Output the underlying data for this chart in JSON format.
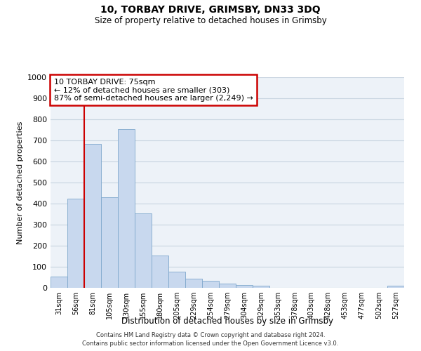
{
  "title": "10, TORBAY DRIVE, GRIMSBY, DN33 3DQ",
  "subtitle": "Size of property relative to detached houses in Grimsby",
  "xlabel": "Distribution of detached houses by size in Grimsby",
  "ylabel": "Number of detached properties",
  "bar_labels": [
    "31sqm",
    "56sqm",
    "81sqm",
    "105sqm",
    "130sqm",
    "155sqm",
    "180sqm",
    "205sqm",
    "229sqm",
    "254sqm",
    "279sqm",
    "304sqm",
    "329sqm",
    "353sqm",
    "378sqm",
    "403sqm",
    "428sqm",
    "453sqm",
    "477sqm",
    "502sqm",
    "527sqm"
  ],
  "bar_values": [
    52,
    425,
    685,
    430,
    755,
    355,
    153,
    78,
    42,
    33,
    20,
    13,
    10,
    0,
    0,
    0,
    0,
    0,
    0,
    0,
    10
  ],
  "bar_color": "#c8d8ee",
  "bar_edge_color": "#7fa8cc",
  "vline_x": 1.5,
  "vline_color": "#cc0000",
  "ylim": [
    0,
    1000
  ],
  "yticks": [
    0,
    100,
    200,
    300,
    400,
    500,
    600,
    700,
    800,
    900,
    1000
  ],
  "annotation_title": "10 TORBAY DRIVE: 75sqm",
  "annotation_line1": "← 12% of detached houses are smaller (303)",
  "annotation_line2": "87% of semi-detached houses are larger (2,249) →",
  "annotation_box_facecolor": "#ffffff",
  "annotation_box_edgecolor": "#cc0000",
  "footer_line1": "Contains HM Land Registry data © Crown copyright and database right 2024.",
  "footer_line2": "Contains public sector information licensed under the Open Government Licence v3.0.",
  "grid_color": "#c8d4e0",
  "axes_facecolor": "#edf2f8",
  "figure_facecolor": "#ffffff"
}
